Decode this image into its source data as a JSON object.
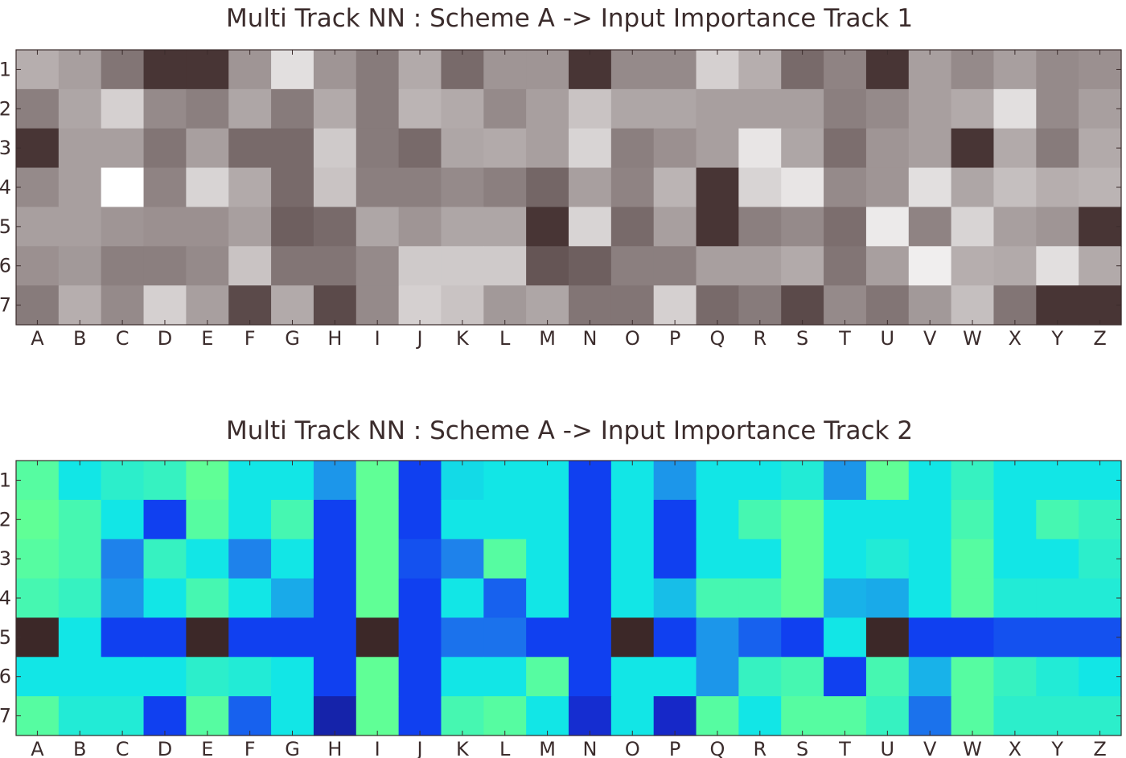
{
  "chart_data": [
    {
      "type": "heatmap",
      "title": "Multi Track NN : Scheme A -> Input Importance Track 1",
      "colormap": "gray",
      "x_categories": [
        "A",
        "B",
        "C",
        "D",
        "E",
        "F",
        "G",
        "H",
        "I",
        "J",
        "K",
        "L",
        "M",
        "N",
        "O",
        "P",
        "Q",
        "R",
        "S",
        "T",
        "U",
        "V",
        "W",
        "X",
        "Y",
        "Z"
      ],
      "y_categories": [
        "1",
        "2",
        "3",
        "4",
        "5",
        "6",
        "7"
      ],
      "value_range": [
        0,
        1
      ],
      "values": [
        [
          0.62,
          0.55,
          0.35,
          0.05,
          0.05,
          0.5,
          0.85,
          0.5,
          0.38,
          0.6,
          0.3,
          0.5,
          0.5,
          0.05,
          0.45,
          0.45,
          0.78,
          0.62,
          0.3,
          0.42,
          0.05,
          0.55,
          0.45,
          0.55,
          0.45,
          0.48
        ],
        [
          0.4,
          0.58,
          0.78,
          0.45,
          0.4,
          0.58,
          0.38,
          0.6,
          0.38,
          0.65,
          0.6,
          0.45,
          0.55,
          0.72,
          0.58,
          0.58,
          0.55,
          0.55,
          0.55,
          0.4,
          0.45,
          0.55,
          0.6,
          0.85,
          0.45,
          0.55
        ],
        [
          0.05,
          0.55,
          0.55,
          0.35,
          0.55,
          0.3,
          0.3,
          0.75,
          0.38,
          0.3,
          0.58,
          0.6,
          0.55,
          0.8,
          0.4,
          0.48,
          0.55,
          0.88,
          0.58,
          0.32,
          0.5,
          0.55,
          0.05,
          0.6,
          0.38,
          0.6
        ],
        [
          0.45,
          0.55,
          1.0,
          0.42,
          0.8,
          0.6,
          0.3,
          0.72,
          0.4,
          0.4,
          0.45,
          0.4,
          0.28,
          0.55,
          0.42,
          0.65,
          0.05,
          0.8,
          0.88,
          0.45,
          0.5,
          0.85,
          0.58,
          0.7,
          0.62,
          0.65
        ],
        [
          0.55,
          0.55,
          0.5,
          0.48,
          0.48,
          0.55,
          0.25,
          0.3,
          0.58,
          0.5,
          0.58,
          0.58,
          0.05,
          0.8,
          0.3,
          0.55,
          0.05,
          0.4,
          0.45,
          0.32,
          0.9,
          0.42,
          0.8,
          0.55,
          0.5,
          0.05
        ],
        [
          0.48,
          0.52,
          0.4,
          0.4,
          0.45,
          0.72,
          0.35,
          0.35,
          0.45,
          0.75,
          0.75,
          0.75,
          0.2,
          0.25,
          0.4,
          0.4,
          0.55,
          0.55,
          0.6,
          0.35,
          0.55,
          0.92,
          0.62,
          0.6,
          0.85,
          0.6
        ],
        [
          0.38,
          0.62,
          0.45,
          0.78,
          0.55,
          0.15,
          0.6,
          0.15,
          0.45,
          0.78,
          0.72,
          0.52,
          0.58,
          0.35,
          0.35,
          0.78,
          0.3,
          0.38,
          0.15,
          0.45,
          0.35,
          0.52,
          0.7,
          0.35,
          0.05,
          0.05
        ]
      ]
    },
    {
      "type": "heatmap",
      "title": "Multi Track NN : Scheme A -> Input Importance Track 2",
      "colormap": "winter-dark",
      "x_categories": [
        "A",
        "B",
        "C",
        "D",
        "E",
        "F",
        "G",
        "H",
        "I",
        "J",
        "K",
        "L",
        "M",
        "N",
        "O",
        "P",
        "Q",
        "R",
        "S",
        "T",
        "U",
        "V",
        "W",
        "X",
        "Y",
        "Z"
      ],
      "y_categories": [
        "1",
        "2",
        "3",
        "4",
        "5",
        "6",
        "7"
      ],
      "value_range": [
        0,
        1
      ],
      "values": [
        [
          0.88,
          0.75,
          0.8,
          0.82,
          0.9,
          0.75,
          0.75,
          0.55,
          0.9,
          0.3,
          0.72,
          0.75,
          0.75,
          0.3,
          0.75,
          0.55,
          0.75,
          0.75,
          0.78,
          0.55,
          0.9,
          0.75,
          0.82,
          0.75,
          0.75,
          0.75
        ],
        [
          0.9,
          0.85,
          0.75,
          0.3,
          0.88,
          0.75,
          0.85,
          0.3,
          0.9,
          0.3,
          0.75,
          0.75,
          0.75,
          0.3,
          0.75,
          0.3,
          0.75,
          0.85,
          0.9,
          0.75,
          0.75,
          0.75,
          0.85,
          0.75,
          0.85,
          0.82
        ],
        [
          0.88,
          0.85,
          0.5,
          0.82,
          0.75,
          0.5,
          0.75,
          0.3,
          0.9,
          0.35,
          0.5,
          0.88,
          0.75,
          0.3,
          0.75,
          0.3,
          0.75,
          0.75,
          0.9,
          0.75,
          0.78,
          0.75,
          0.88,
          0.75,
          0.75,
          0.8
        ],
        [
          0.85,
          0.82,
          0.55,
          0.75,
          0.85,
          0.75,
          0.6,
          0.3,
          0.9,
          0.3,
          0.75,
          0.4,
          0.75,
          0.3,
          0.75,
          0.65,
          0.85,
          0.85,
          0.9,
          0.62,
          0.6,
          0.75,
          0.88,
          0.78,
          0.78,
          0.78
        ],
        [
          0.0,
          0.75,
          0.3,
          0.3,
          0.0,
          0.3,
          0.3,
          0.3,
          0.0,
          0.3,
          0.45,
          0.45,
          0.3,
          0.3,
          0.0,
          0.3,
          0.55,
          0.4,
          0.3,
          0.75,
          0.0,
          0.3,
          0.3,
          0.35,
          0.35,
          0.35
        ],
        [
          0.75,
          0.75,
          0.75,
          0.75,
          0.8,
          0.78,
          0.75,
          0.3,
          0.9,
          0.3,
          0.75,
          0.75,
          0.88,
          0.3,
          0.75,
          0.75,
          0.55,
          0.82,
          0.85,
          0.3,
          0.85,
          0.62,
          0.88,
          0.82,
          0.78,
          0.75
        ],
        [
          0.88,
          0.78,
          0.78,
          0.3,
          0.88,
          0.4,
          0.75,
          0.15,
          0.9,
          0.3,
          0.85,
          0.88,
          0.75,
          0.22,
          0.75,
          0.2,
          0.88,
          0.75,
          0.88,
          0.88,
          0.82,
          0.45,
          0.88,
          0.8,
          0.8,
          0.8
        ]
      ]
    }
  ]
}
